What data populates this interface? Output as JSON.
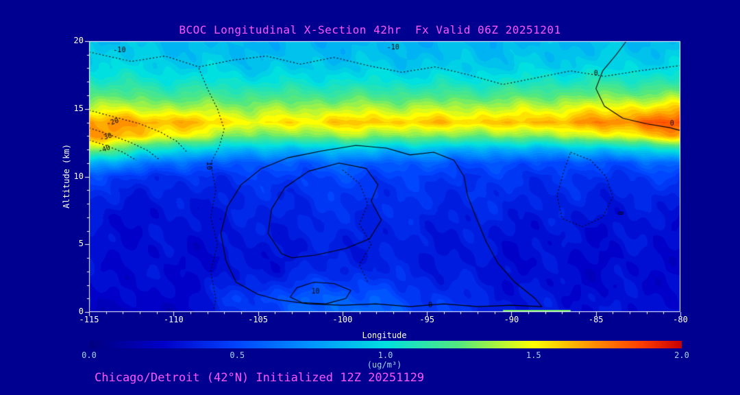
{
  "colors": {
    "background": "#000090",
    "title": "#ff55ff",
    "axis": "#ffffff",
    "colorbar_text": "#9fd4e8",
    "contour": "#000000"
  },
  "chart_data": {
    "type": "heatmap",
    "title": "BCOC Longitudinal X-Section 42hr  Fx Valid 06Z 20251201",
    "caption": "Chicago/Detroit (42°N) Initialized 12Z 20251129",
    "xlabel": "Longitude",
    "ylabel": "Altitude (km)",
    "xlim": [
      -115,
      -80
    ],
    "ylim": [
      0,
      20
    ],
    "x_ticks": [
      -115,
      -110,
      -105,
      -100,
      -95,
      -90,
      -85,
      -80
    ],
    "y_ticks": [
      0,
      5,
      10,
      15,
      20
    ],
    "colorbar": {
      "min": 0,
      "max": 2,
      "ticks": [
        "0.0",
        "0.5",
        "1.0",
        "1.5",
        "2.0"
      ],
      "label": "(ug/m³)",
      "stops": [
        [
          0.0,
          "#000080"
        ],
        [
          0.125,
          "#0000c8"
        ],
        [
          0.25,
          "#0045ff"
        ],
        [
          0.375,
          "#0095ff"
        ],
        [
          0.5,
          "#00e0e0"
        ],
        [
          0.625,
          "#55e87d"
        ],
        [
          0.75,
          "#ffff00"
        ],
        [
          0.85,
          "#ff9000"
        ],
        [
          0.93,
          "#ff4000"
        ],
        [
          1.0,
          "#c80000"
        ]
      ]
    },
    "grid": {
      "units": "ug/m3",
      "orientation": "values[i][j] = concentration at lons[i], alts[j]",
      "lons": [
        -115,
        -110,
        -105,
        -100,
        -95,
        -90,
        -85,
        -80
      ],
      "alts": [
        0,
        1,
        2,
        3,
        4,
        5,
        6,
        7,
        8,
        9,
        10,
        11,
        12,
        13,
        14,
        15,
        16,
        17,
        18,
        19,
        20
      ],
      "values": [
        [
          0.22,
          0.28,
          0.3,
          0.3,
          0.3,
          0.3,
          0.3,
          0.3,
          0.35,
          0.4,
          0.5,
          0.85,
          1.35,
          1.7,
          1.7,
          1.45,
          1.25,
          1.1,
          1.0,
          0.95,
          0.9
        ],
        [
          0.22,
          0.25,
          0.27,
          0.28,
          0.28,
          0.28,
          0.3,
          0.3,
          0.32,
          0.35,
          0.4,
          0.6,
          1.0,
          1.5,
          1.65,
          1.4,
          1.2,
          1.05,
          0.95,
          0.9,
          0.88
        ],
        [
          0.45,
          0.5,
          0.4,
          0.32,
          0.3,
          0.32,
          0.34,
          0.36,
          0.38,
          0.4,
          0.45,
          0.55,
          0.85,
          1.25,
          1.5,
          1.35,
          1.18,
          1.02,
          0.92,
          0.88,
          0.85
        ],
        [
          0.65,
          0.6,
          0.5,
          0.4,
          0.36,
          0.36,
          0.38,
          0.4,
          0.42,
          0.45,
          0.5,
          0.6,
          0.9,
          1.35,
          1.6,
          1.4,
          1.2,
          1.03,
          0.93,
          0.88,
          0.85
        ],
        [
          0.5,
          0.45,
          0.4,
          0.36,
          0.34,
          0.34,
          0.36,
          0.38,
          0.4,
          0.42,
          0.46,
          0.56,
          0.86,
          1.3,
          1.6,
          1.4,
          1.2,
          1.03,
          0.93,
          0.88,
          0.85
        ],
        [
          0.35,
          0.33,
          0.31,
          0.3,
          0.3,
          0.3,
          0.32,
          0.35,
          0.38,
          0.4,
          0.43,
          0.52,
          0.82,
          1.3,
          1.6,
          1.42,
          1.22,
          1.05,
          0.94,
          0.89,
          0.86
        ],
        [
          0.3,
          0.3,
          0.28,
          0.28,
          0.28,
          0.3,
          0.3,
          0.32,
          0.35,
          0.38,
          0.42,
          0.52,
          0.88,
          1.42,
          1.7,
          1.5,
          1.28,
          1.1,
          0.97,
          0.91,
          0.88
        ],
        [
          0.3,
          0.3,
          0.28,
          0.28,
          0.28,
          0.3,
          0.3,
          0.32,
          0.35,
          0.4,
          0.46,
          0.62,
          1.05,
          1.65,
          1.85,
          1.6,
          1.32,
          1.12,
          0.98,
          0.92,
          0.89
        ]
      ]
    },
    "surface_strip": {
      "lons": [
        -90.5,
        -86.5
      ],
      "value": 1.3
    },
    "contours": [
      {
        "label": "-10",
        "style": "dotted",
        "closed": false,
        "points": [
          [
            -115,
            19.2
          ],
          [
            -112.5,
            18.5
          ],
          [
            -110.5,
            18.9
          ],
          [
            -108.5,
            18.1
          ],
          [
            -106.5,
            18.6
          ],
          [
            -104.5,
            18.9
          ],
          [
            -102.5,
            18.3
          ],
          [
            -100.5,
            18.8
          ],
          [
            -98.5,
            18.2
          ],
          [
            -96.5,
            17.7
          ],
          [
            -94.5,
            18.1
          ],
          [
            -92.5,
            17.5
          ],
          [
            -90.5,
            16.8
          ],
          [
            -88.5,
            17.3
          ],
          [
            -86.5,
            17.8
          ],
          [
            -84.5,
            17.4
          ],
          [
            -82.5,
            17.8
          ],
          [
            -80,
            18.2
          ]
        ]
      },
      {
        "label": "",
        "style": "dotted",
        "closed": false,
        "points": [
          [
            -108.5,
            18.0
          ],
          [
            -108.0,
            16.5
          ],
          [
            -107.4,
            15.0
          ],
          [
            -107.0,
            13.5
          ],
          [
            -107.3,
            12.2
          ],
          [
            -107.8,
            11.0
          ],
          [
            -107.5,
            9.0
          ],
          [
            -107.8,
            7.0
          ],
          [
            -107.4,
            5.0
          ],
          [
            -107.8,
            3.0
          ],
          [
            -107.5,
            1.0
          ],
          [
            -107.6,
            0.2
          ]
        ]
      },
      {
        "label": "-20",
        "style": "dotted",
        "closed": false,
        "points": [
          [
            -115,
            14.9
          ],
          [
            -113.5,
            14.4
          ],
          [
            -112,
            13.9
          ],
          [
            -110.8,
            13.3
          ],
          [
            -109.8,
            12.6
          ],
          [
            -109.2,
            11.8
          ]
        ]
      },
      {
        "label": "-30",
        "style": "dotted",
        "closed": false,
        "points": [
          [
            -115,
            13.6
          ],
          [
            -113.8,
            13.1
          ],
          [
            -112.5,
            12.5
          ],
          [
            -111.5,
            11.9
          ],
          [
            -110.8,
            11.2
          ]
        ]
      },
      {
        "label": "-40",
        "style": "dotted",
        "closed": false,
        "points": [
          [
            -115,
            12.7
          ],
          [
            -114,
            12.3
          ],
          [
            -113,
            11.8
          ],
          [
            -112.2,
            11.2
          ]
        ]
      },
      {
        "label": "",
        "style": "dotted",
        "closed": false,
        "points": [
          [
            -100,
            10.5
          ],
          [
            -99,
            9.5
          ],
          [
            -98.5,
            8.0
          ],
          [
            -99,
            6.5
          ],
          [
            -98.3,
            5.0
          ],
          [
            -99,
            3.5
          ],
          [
            -98.5,
            2.2
          ]
        ]
      },
      {
        "label": "",
        "style": "dotted",
        "closed": true,
        "points": [
          [
            -86.5,
            11.8
          ],
          [
            -85.3,
            11.2
          ],
          [
            -84.4,
            10.0
          ],
          [
            -84.0,
            8.5
          ],
          [
            -84.6,
            7.0
          ],
          [
            -85.8,
            6.3
          ],
          [
            -87.0,
            6.9
          ],
          [
            -87.3,
            8.6
          ],
          [
            -86.9,
            10.4
          ]
        ]
      },
      {
        "label": "0",
        "style": "solid",
        "closed": true,
        "points": [
          [
            -106.3,
            2.2
          ],
          [
            -106.9,
            3.8
          ],
          [
            -107.2,
            5.8
          ],
          [
            -106.8,
            7.8
          ],
          [
            -106.0,
            9.4
          ],
          [
            -104.8,
            10.6
          ],
          [
            -103.2,
            11.4
          ],
          [
            -101.2,
            11.9
          ],
          [
            -99.2,
            12.3
          ],
          [
            -97.4,
            12.1
          ],
          [
            -96.0,
            11.6
          ],
          [
            -94.6,
            11.8
          ],
          [
            -93.4,
            11.2
          ],
          [
            -92.8,
            10.0
          ],
          [
            -92.6,
            8.6
          ],
          [
            -92.1,
            7.0
          ],
          [
            -91.5,
            5.2
          ],
          [
            -90.8,
            3.6
          ],
          [
            -89.8,
            2.2
          ],
          [
            -88.6,
            1.0
          ],
          [
            -88.2,
            0.4
          ],
          [
            -90.0,
            0.5
          ],
          [
            -92.0,
            0.4
          ],
          [
            -94.0,
            0.6
          ],
          [
            -96.0,
            0.4
          ],
          [
            -98.0,
            0.6
          ],
          [
            -100.0,
            0.5
          ],
          [
            -102.0,
            0.6
          ],
          [
            -103.8,
            0.9
          ],
          [
            -105.0,
            1.3
          ]
        ]
      },
      {
        "label": "",
        "style": "solid",
        "closed": true,
        "points": [
          [
            -103.6,
            4.3
          ],
          [
            -104.4,
            5.8
          ],
          [
            -104.2,
            7.6
          ],
          [
            -103.4,
            9.2
          ],
          [
            -102.0,
            10.4
          ],
          [
            -100.2,
            11.0
          ],
          [
            -98.6,
            10.6
          ],
          [
            -97.9,
            9.4
          ],
          [
            -98.3,
            8.2
          ],
          [
            -97.7,
            6.8
          ],
          [
            -98.4,
            5.4
          ],
          [
            -99.8,
            4.7
          ],
          [
            -101.6,
            4.2
          ],
          [
            -103.0,
            4.0
          ]
        ]
      },
      {
        "label": "10",
        "style": "solid",
        "closed": true,
        "points": [
          [
            -103.1,
            1.1
          ],
          [
            -102.7,
            1.8
          ],
          [
            -101.7,
            2.2
          ],
          [
            -100.5,
            2.1
          ],
          [
            -99.5,
            1.6
          ],
          [
            -99.8,
            1.0
          ],
          [
            -101.0,
            0.6
          ],
          [
            -102.4,
            0.7
          ]
        ]
      },
      {
        "label": "0",
        "style": "solid",
        "closed": false,
        "points": [
          [
            -83.2,
            20.0
          ],
          [
            -83.8,
            19.0
          ],
          [
            -84.6,
            17.8
          ],
          [
            -85.0,
            16.5
          ],
          [
            -84.5,
            15.2
          ],
          [
            -83.4,
            14.3
          ],
          [
            -82.0,
            13.9
          ],
          [
            -80.6,
            13.6
          ],
          [
            -80.0,
            13.4
          ]
        ]
      }
    ],
    "contour_labels": [
      {
        "text": "-10",
        "lon": -113.2,
        "alt": 19.3,
        "rot": 0
      },
      {
        "text": "-10",
        "lon": -97.0,
        "alt": 19.5,
        "rot": 0
      },
      {
        "text": "-20",
        "lon": -113.6,
        "alt": 14.0,
        "rot": -18
      },
      {
        "text": "-30",
        "lon": -114.0,
        "alt": 12.9,
        "rot": -18
      },
      {
        "text": "-40",
        "lon": -114.1,
        "alt": 12.0,
        "rot": -18
      },
      {
        "text": "10",
        "lon": -107.9,
        "alt": 10.8,
        "rot": 90
      },
      {
        "text": "10",
        "lon": -101.6,
        "alt": 1.5,
        "rot": 0
      },
      {
        "text": "0",
        "lon": -94.8,
        "alt": 0.5,
        "rot": 0
      },
      {
        "text": "0",
        "lon": -83.6,
        "alt": 7.3,
        "rot": 90
      },
      {
        "text": "0",
        "lon": -85.0,
        "alt": 17.6,
        "rot": 0
      },
      {
        "text": "0",
        "lon": -80.5,
        "alt": 13.9,
        "rot": 0
      }
    ]
  }
}
